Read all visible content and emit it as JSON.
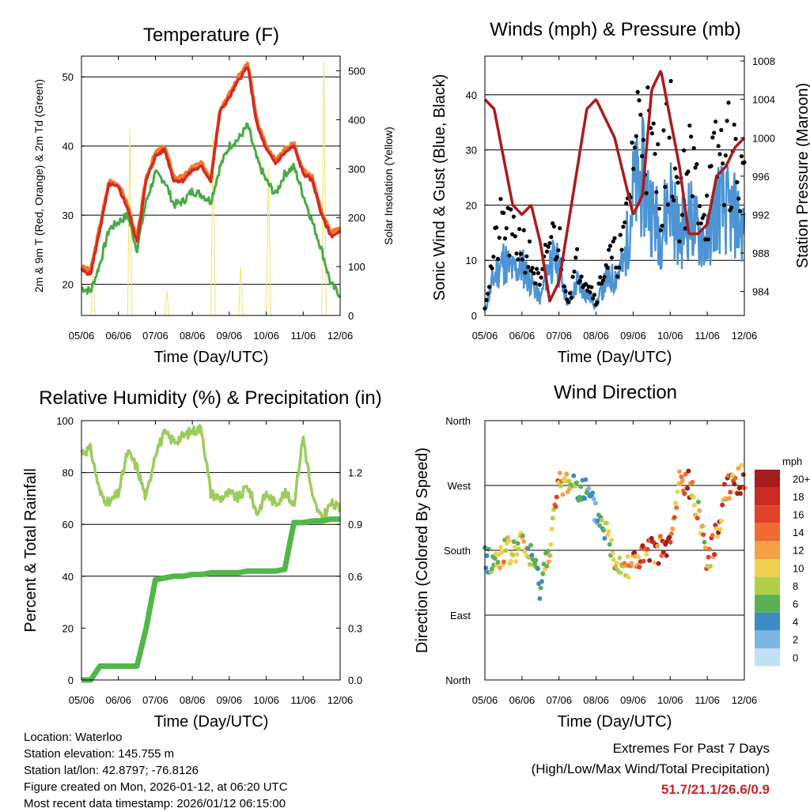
{
  "colors": {
    "t2m": "#d42a20",
    "t9m": "#f07a2a",
    "td": "#4aaa44",
    "solar": "#f6e263",
    "wind": "#4c94d4",
    "gust": "#000000",
    "pressure": "#a81c1c",
    "rh": "#9ccc5c",
    "precip": "#50b848",
    "extremes": "#c8252b"
  },
  "temperature": {
    "title": "Temperature (F)",
    "ylabel": "2m & 9m T (Red, Orange) & 2m Td (Green)",
    "y2label": "Solar Insolation (Yellow)",
    "xlabel": "Time (Day/UTC)",
    "xticks": [
      "05/06",
      "06/06",
      "07/06",
      "08/06",
      "09/06",
      "10/06",
      "11/06",
      "12/06"
    ],
    "yticks": [
      20,
      30,
      40,
      50
    ],
    "y2ticks": [
      0,
      100,
      200,
      300,
      400,
      500
    ]
  },
  "winds": {
    "title": "Winds (mph) & Pressure (mb)",
    "ylabel": "Sonic Wind & Gust (Blue, Black)",
    "y2label": "Station Pressure (Maroon)",
    "xlabel": "Time (Day/UTC)",
    "xticks": [
      "05/06",
      "06/06",
      "07/06",
      "08/06",
      "09/06",
      "10/06",
      "11/06",
      "12/06"
    ],
    "yticks": [
      0,
      10,
      20,
      30,
      40
    ],
    "y2ticks": [
      984,
      988,
      992,
      996,
      1000,
      1004,
      1008
    ]
  },
  "humidity": {
    "title": "Relative Humidity (%) & Precipitation (in)",
    "ylabel": "Percent & Total Rainfall",
    "xlabel": "Time (Day/UTC)",
    "xticks": [
      "05/06",
      "06/06",
      "07/06",
      "08/06",
      "09/06",
      "10/06",
      "11/06",
      "12/06"
    ],
    "yticks": [
      0,
      20,
      40,
      60,
      80,
      100
    ],
    "y2ticks": [
      "0.0",
      "0.3",
      "0.6",
      "0.9",
      "1.2"
    ]
  },
  "direction": {
    "title": "Wind Direction",
    "ylabel": "Direction (Colored By Speed)",
    "xlabel": "Time (Day/UTC)",
    "xticks": [
      "05/06",
      "06/06",
      "07/06",
      "08/06",
      "09/06",
      "10/06",
      "11/06",
      "12/06"
    ],
    "yticks": [
      "North",
      "East",
      "South",
      "West",
      "North"
    ],
    "legend_title": "mph",
    "legend_labels": [
      "20+",
      "18",
      "16",
      "14",
      "12",
      "10",
      "8",
      "6",
      "4",
      "2",
      "0"
    ],
    "legend_colors": [
      "#a51c1c",
      "#c92a22",
      "#e0432a",
      "#f06b30",
      "#f6a048",
      "#f0d050",
      "#b0d04a",
      "#5cb054",
      "#3e8ac4",
      "#7cb6e4",
      "#c0e0f4"
    ]
  },
  "chart_data": [
    {
      "type": "line",
      "title": "Temperature (F)",
      "xlabel": "Time (Day/UTC)",
      "ylabel": "2m & 9m T (Red, Orange) & 2m Td (Green)",
      "ylim": [
        15.5,
        53
      ],
      "y2label": "Solar Insolation (Yellow)",
      "y2lim": [
        0,
        530
      ],
      "x": [
        0,
        0.25,
        0.5,
        0.75,
        1.0,
        1.25,
        1.5,
        1.75,
        2.0,
        2.25,
        2.5,
        2.75,
        3.0,
        3.25,
        3.5,
        3.75,
        4.0,
        4.25,
        4.5,
        4.75,
        5.0,
        5.25,
        5.5,
        5.75,
        6.0,
        6.25,
        6.5,
        6.75,
        7.0
      ],
      "series": [
        {
          "name": "2m T",
          "values": [
            22,
            21.5,
            28,
            34.5,
            34,
            31,
            26,
            35,
            38.5,
            39.5,
            35,
            35,
            36.5,
            37,
            35,
            45,
            47,
            49.5,
            51.5,
            43,
            39.5,
            37.5,
            39,
            40,
            36,
            35,
            30,
            27,
            27.5
          ]
        },
        {
          "name": "9m T",
          "values": [
            22.5,
            22,
            28.5,
            35,
            34.5,
            31.5,
            26.5,
            35.5,
            39,
            40,
            35.5,
            35.5,
            37,
            37.5,
            35.5,
            45.5,
            47.5,
            50,
            52,
            43.5,
            40,
            38,
            39.5,
            40.5,
            36.5,
            35.5,
            30.5,
            27.5,
            28
          ]
        },
        {
          "name": "2m Td",
          "values": [
            19.5,
            19,
            23,
            28,
            29,
            30,
            25,
            32,
            36,
            35,
            31.5,
            32,
            33.5,
            33,
            32,
            37,
            40,
            41,
            43,
            38,
            35,
            33,
            36,
            37,
            33,
            29,
            25,
            20,
            18.5
          ]
        },
        {
          "name": "Solar Insolation",
          "axis": "y2",
          "values": [
            0,
            80,
            0,
            0,
            0,
            380,
            0,
            0,
            0,
            50,
            0,
            0,
            0,
            0,
            370,
            0,
            0,
            100,
            0,
            0,
            300,
            0,
            0,
            0,
            0,
            0,
            520,
            0,
            0
          ]
        }
      ]
    },
    {
      "type": "line",
      "title": "Winds (mph) & Pressure (mb)",
      "xlabel": "Time (Day/UTC)",
      "ylabel": "Sonic Wind & Gust (Blue, Black)",
      "ylim": [
        0,
        47
      ],
      "y2label": "Station Pressure (Maroon)",
      "y2lim": [
        981.5,
        1008.5
      ],
      "x": [
        0,
        0.25,
        0.5,
        0.75,
        1.0,
        1.25,
        1.5,
        1.75,
        2.0,
        2.25,
        2.5,
        2.75,
        3.0,
        3.25,
        3.5,
        3.75,
        4.0,
        4.25,
        4.5,
        4.75,
        5.0,
        5.25,
        5.5,
        5.75,
        6.0,
        6.25,
        6.5,
        6.75,
        7.0
      ],
      "series": [
        {
          "name": "Sonic Wind",
          "values": [
            1,
            7,
            10,
            8,
            9,
            6,
            3,
            10,
            9,
            2,
            6,
            4,
            2,
            6,
            7,
            9,
            22,
            25,
            19,
            15,
            22,
            14,
            18,
            15,
            13,
            20,
            19,
            18,
            15
          ]
        },
        {
          "name": "Gust",
          "values": [
            2,
            12,
            18,
            14,
            14,
            10,
            5,
            15,
            14,
            3,
            10,
            7,
            3,
            10,
            11,
            13,
            32,
            40,
            30,
            25,
            34,
            22,
            28,
            24,
            20,
            30,
            31,
            29,
            24
          ]
        },
        {
          "name": "Station Pressure",
          "axis": "y2",
          "values": [
            1004,
            1003,
            998,
            993,
            992,
            993,
            989,
            983,
            985,
            991,
            997,
            1003,
            1004,
            1002,
            1000,
            996,
            992,
            994,
            1005,
            1007,
            1002,
            997,
            990,
            990,
            991,
            996,
            997,
            999,
            1000
          ]
        }
      ]
    },
    {
      "type": "line",
      "title": "Relative Humidity (%) & Precipitation (in)",
      "xlabel": "Time (Day/UTC)",
      "ylabel": "Percent & Total Rainfall",
      "ylim": [
        0,
        100
      ],
      "y2lim": [
        0,
        1.5
      ],
      "x": [
        0,
        0.25,
        0.5,
        0.75,
        1.0,
        1.25,
        1.5,
        1.75,
        2.0,
        2.25,
        2.5,
        2.75,
        3.0,
        3.25,
        3.5,
        3.75,
        4.0,
        4.25,
        4.5,
        4.75,
        5.0,
        5.25,
        5.5,
        5.75,
        6.0,
        6.25,
        6.5,
        6.75,
        7.0
      ],
      "series": [
        {
          "name": "Relative Humidity",
          "values": [
            88,
            89,
            72,
            68,
            72,
            88,
            82,
            70,
            88,
            95,
            92,
            94,
            96,
            97,
            72,
            70,
            72,
            70,
            75,
            64,
            72,
            68,
            72,
            68,
            94,
            70,
            62,
            68,
            66
          ]
        },
        {
          "name": "Total Precipitation",
          "axis": "y2",
          "values": [
            0,
            0,
            0.08,
            0.08,
            0.08,
            0.08,
            0.08,
            0.3,
            0.58,
            0.59,
            0.6,
            0.6,
            0.61,
            0.61,
            0.62,
            0.62,
            0.62,
            0.62,
            0.63,
            0.63,
            0.63,
            0.63,
            0.64,
            0.91,
            0.91,
            0.92,
            0.92,
            0.93,
            0.93
          ]
        }
      ]
    },
    {
      "type": "scatter",
      "title": "Wind Direction",
      "xlabel": "Time (Day/UTC)",
      "ylabel": "Direction (Colored By Speed)",
      "ylim": [
        0,
        360
      ],
      "x": [
        0,
        0.25,
        0.5,
        0.75,
        1.0,
        1.25,
        1.5,
        1.75,
        2.0,
        2.25,
        2.5,
        2.75,
        3.0,
        3.25,
        3.5,
        3.75,
        4.0,
        4.25,
        4.5,
        4.75,
        5.0,
        5.25,
        5.5,
        5.75,
        6.0,
        6.25,
        6.5,
        6.75,
        7.0
      ],
      "series": [
        {
          "name": "Direction (deg)",
          "values": [
            170,
            160,
            180,
            175,
            190,
            170,
            130,
            190,
            270,
            275,
            270,
            260,
            230,
            210,
            170,
            160,
            165,
            170,
            178,
            182,
            185,
            276,
            270,
            240,
            165,
            200,
            270,
            275,
            280
          ]
        },
        {
          "name": "Speed (mph)",
          "values": [
            3,
            8,
            12,
            10,
            10,
            8,
            5,
            12,
            14,
            10,
            6,
            4,
            3,
            8,
            10,
            11,
            15,
            18,
            20,
            18,
            17,
            10,
            16,
            12,
            12,
            16,
            18,
            20,
            20
          ]
        }
      ]
    }
  ],
  "info": {
    "location": "Location: Waterloo",
    "elevation": "Station elevation: 145.755 m",
    "latlon": "Station lat/lon: 42.8797; -76.8126",
    "created": "Figure created on Mon, 2026-01-12, at 06:20 UTC",
    "recent": "Most recent data timestamp: 2026/01/12 06:15:00"
  },
  "extremes": {
    "line1": "Extremes For Past 7 Days",
    "line2": "(High/Low/Max Wind/Total Precipitation)",
    "values": "51.7/21.1/26.6/0.9"
  }
}
